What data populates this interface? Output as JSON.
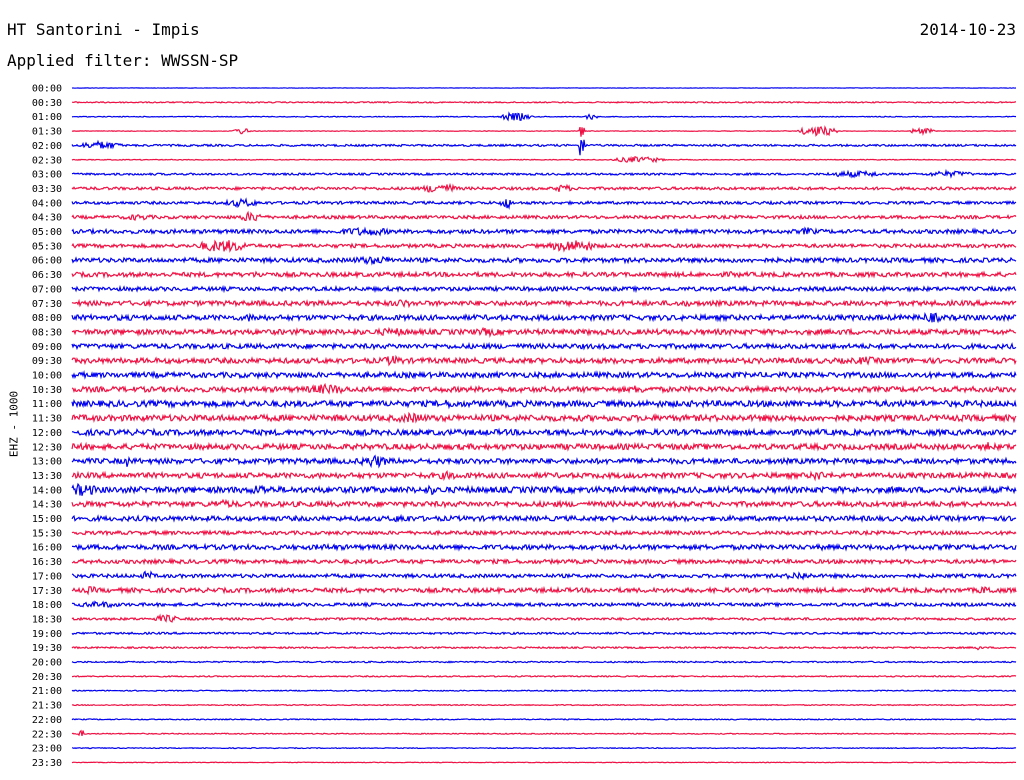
{
  "header": {
    "title": "HT Santorini - Impis",
    "date": "2014-10-23",
    "filter": "Applied filter: WWSSN-SP"
  },
  "chart_data": {
    "type": "line",
    "title": "HT Santorini - Impis",
    "ylabel": "EHZ - 1000",
    "colors": {
      "odd": "#0000ee",
      "even": "#ee1144"
    },
    "rows": [
      {
        "label": "00:00",
        "amp": 0.2,
        "bursts": []
      },
      {
        "label": "00:30",
        "amp": 0.6,
        "bursts": []
      },
      {
        "label": "01:00",
        "amp": 0.4,
        "bursts": [
          [
            0.47,
            0.5,
            4
          ],
          [
            0.55,
            0.2,
            3
          ]
        ]
      },
      {
        "label": "01:30",
        "amp": 0.3,
        "bursts": [
          [
            0.18,
            0.3,
            3
          ],
          [
            0.54,
            0.1,
            12
          ],
          [
            0.79,
            0.6,
            5
          ],
          [
            0.9,
            0.4,
            3
          ]
        ]
      },
      {
        "label": "02:00",
        "amp": 1.0,
        "bursts": [
          [
            0.03,
            0.7,
            4
          ],
          [
            0.54,
            0.1,
            14
          ]
        ]
      },
      {
        "label": "02:30",
        "amp": 0.4,
        "bursts": [
          [
            0.6,
            0.8,
            3
          ]
        ]
      },
      {
        "label": "03:00",
        "amp": 1.0,
        "bursts": [
          [
            0.83,
            1.0,
            3
          ],
          [
            0.93,
            0.8,
            3
          ]
        ]
      },
      {
        "label": "03:30",
        "amp": 1.4,
        "bursts": [
          [
            0.39,
            0.6,
            5
          ],
          [
            0.52,
            0.3,
            4
          ]
        ]
      },
      {
        "label": "04:00",
        "amp": 1.4,
        "bursts": [
          [
            0.18,
            0.6,
            4
          ],
          [
            0.46,
            0.2,
            6
          ]
        ]
      },
      {
        "label": "04:30",
        "amp": 1.6,
        "bursts": [
          [
            0.07,
            0.6,
            3
          ],
          [
            0.19,
            0.4,
            5
          ]
        ]
      },
      {
        "label": "05:00",
        "amp": 2.0,
        "bursts": [
          [
            0.31,
            1.0,
            4
          ],
          [
            0.78,
            0.3,
            4
          ]
        ]
      },
      {
        "label": "05:30",
        "amp": 1.8,
        "bursts": [
          [
            0.16,
            0.9,
            6
          ],
          [
            0.53,
            0.8,
            6
          ]
        ]
      },
      {
        "label": "06:00",
        "amp": 2.2,
        "bursts": [
          [
            0.32,
            0.9,
            4
          ]
        ]
      },
      {
        "label": "06:30",
        "amp": 2.2,
        "bursts": [
          [
            0.2,
            0.6,
            3
          ],
          [
            0.7,
            0.4,
            3
          ]
        ]
      },
      {
        "label": "07:00",
        "amp": 2.0,
        "bursts": []
      },
      {
        "label": "07:30",
        "amp": 2.4,
        "bursts": [
          [
            0.35,
            0.4,
            4
          ],
          [
            0.65,
            0.5,
            3
          ]
        ]
      },
      {
        "label": "08:00",
        "amp": 2.6,
        "bursts": [
          [
            0.05,
            0.4,
            3
          ],
          [
            0.19,
            0.4,
            4
          ],
          [
            0.91,
            0.4,
            5
          ]
        ]
      },
      {
        "label": "08:30",
        "amp": 2.6,
        "bursts": [
          [
            0.34,
            0.7,
            4
          ],
          [
            0.44,
            0.5,
            4
          ]
        ]
      },
      {
        "label": "09:00",
        "amp": 2.4,
        "bursts": []
      },
      {
        "label": "09:30",
        "amp": 2.6,
        "bursts": [
          [
            0.34,
            0.4,
            5
          ],
          [
            0.84,
            0.5,
            4
          ]
        ]
      },
      {
        "label": "10:00",
        "amp": 2.6,
        "bursts": []
      },
      {
        "label": "10:30",
        "amp": 2.6,
        "bursts": [
          [
            0.27,
            0.8,
            5
          ],
          [
            0.6,
            0.2,
            5
          ],
          [
            0.93,
            0.5,
            3
          ]
        ]
      },
      {
        "label": "11:00",
        "amp": 3.0,
        "bursts": [
          [
            0.4,
            0.6,
            4
          ]
        ]
      },
      {
        "label": "11:30",
        "amp": 3.0,
        "bursts": [
          [
            0.36,
            0.6,
            5
          ]
        ]
      },
      {
        "label": "12:00",
        "amp": 2.8,
        "bursts": []
      },
      {
        "label": "12:30",
        "amp": 2.8,
        "bursts": [
          [
            0.01,
            0.1,
            5
          ],
          [
            0.97,
            0.1,
            6
          ]
        ]
      },
      {
        "label": "13:00",
        "amp": 2.6,
        "bursts": [
          [
            0.06,
            0.1,
            7
          ],
          [
            0.32,
            0.5,
            6
          ]
        ]
      },
      {
        "label": "13:30",
        "amp": 2.6,
        "bursts": [
          [
            0.4,
            0.5,
            4
          ],
          [
            0.79,
            0.3,
            5
          ]
        ]
      },
      {
        "label": "14:00",
        "amp": 3.0,
        "bursts": [
          [
            0.01,
            0.6,
            6
          ],
          [
            0.2,
            0.5,
            5
          ],
          [
            0.38,
            0.2,
            5
          ]
        ]
      },
      {
        "label": "14:30",
        "amp": 2.6,
        "bursts": [
          [
            0.16,
            0.6,
            4
          ]
        ]
      },
      {
        "label": "15:00",
        "amp": 2.4,
        "bursts": [
          [
            0.35,
            0.5,
            4
          ]
        ]
      },
      {
        "label": "15:30",
        "amp": 1.8,
        "bursts": []
      },
      {
        "label": "16:00",
        "amp": 2.4,
        "bursts": [
          [
            0.27,
            1.0,
            3
          ],
          [
            0.8,
            0.5,
            3
          ]
        ]
      },
      {
        "label": "16:30",
        "amp": 2.0,
        "bursts": []
      },
      {
        "label": "17:00",
        "amp": 1.8,
        "bursts": [
          [
            0.08,
            0.2,
            5
          ],
          [
            0.77,
            0.5,
            4
          ]
        ]
      },
      {
        "label": "17:30",
        "amp": 2.2,
        "bursts": [
          [
            0.02,
            0.2,
            4
          ],
          [
            0.97,
            0.4,
            4
          ]
        ]
      },
      {
        "label": "18:00",
        "amp": 1.6,
        "bursts": [
          [
            0.03,
            0.8,
            3
          ]
        ]
      },
      {
        "label": "18:30",
        "amp": 1.2,
        "bursts": [
          [
            0.1,
            0.4,
            4
          ]
        ]
      },
      {
        "label": "19:00",
        "amp": 1.0,
        "bursts": []
      },
      {
        "label": "19:30",
        "amp": 0.8,
        "bursts": [
          [
            0.96,
            0.1,
            3
          ]
        ]
      },
      {
        "label": "20:00",
        "amp": 0.7,
        "bursts": []
      },
      {
        "label": "20:30",
        "amp": 0.6,
        "bursts": []
      },
      {
        "label": "21:00",
        "amp": 0.5,
        "bursts": []
      },
      {
        "label": "21:30",
        "amp": 0.5,
        "bursts": []
      },
      {
        "label": "22:00",
        "amp": 0.5,
        "bursts": []
      },
      {
        "label": "22:30",
        "amp": 0.5,
        "bursts": [
          [
            0.01,
            0.1,
            4
          ]
        ]
      },
      {
        "label": "23:00",
        "amp": 0.4,
        "bursts": []
      },
      {
        "label": "23:30",
        "amp": 0.3,
        "bursts": []
      }
    ]
  }
}
